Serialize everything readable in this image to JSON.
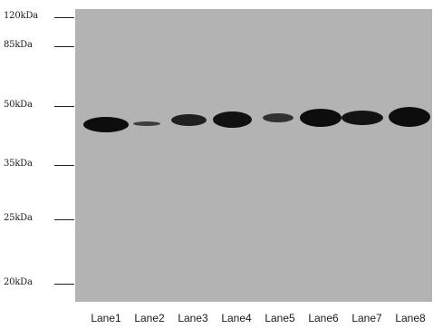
{
  "markers": [
    {
      "label": "120kDa",
      "kda": 120
    },
    {
      "label": "85kDa",
      "kda": 85
    },
    {
      "label": "50kDa",
      "kda": 50
    },
    {
      "label": "35kDa",
      "kda": 35
    },
    {
      "label": "25kDa",
      "kda": 25
    },
    {
      "label": "20kDa",
      "kda": 20
    }
  ],
  "lanes": [
    {
      "label": "Lane1",
      "band_intensity": 1.0
    },
    {
      "label": "Lane2",
      "band_intensity": 0.35
    },
    {
      "label": "Lane3",
      "band_intensity": 0.75
    },
    {
      "label": "Lane4",
      "band_intensity": 0.95
    },
    {
      "label": "Lane5",
      "band_intensity": 0.5
    },
    {
      "label": "Lane6",
      "band_intensity": 1.0
    },
    {
      "label": "Lane7",
      "band_intensity": 0.9
    },
    {
      "label": "Lane8",
      "band_intensity": 1.0
    }
  ],
  "colors": {
    "membrane": "#b3b3b3",
    "band": "#0d0d0d"
  }
}
